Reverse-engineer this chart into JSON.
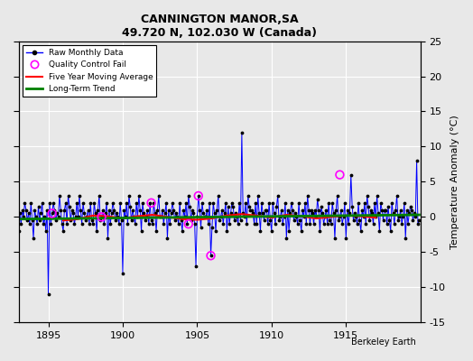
{
  "title": "CANNINGTON MANOR,SA",
  "subtitle": "49.720 N, 102.030 W (Canada)",
  "ylabel": "Temperature Anomaly (°C)",
  "xlabel_credit": "Berkeley Earth",
  "xlim": [
    1893,
    1920
  ],
  "ylim": [
    -15,
    25
  ],
  "yticks": [
    -15,
    -10,
    -5,
    0,
    5,
    10,
    15,
    20,
    25
  ],
  "xticks": [
    1895,
    1900,
    1905,
    1910,
    1915
  ],
  "bg_color": "#e8e8e8",
  "plot_bg_color": "#e8e8e8",
  "grid_color": "#ffffff",
  "raw_color": "blue",
  "dot_color": "black",
  "ma_color": "red",
  "trend_color": "green",
  "qc_color": "magenta",
  "raw_data": {
    "years": [
      1893.0,
      1893.083,
      1893.167,
      1893.25,
      1893.333,
      1893.417,
      1893.5,
      1893.583,
      1893.667,
      1893.75,
      1893.833,
      1893.917,
      1894.0,
      1894.083,
      1894.167,
      1894.25,
      1894.333,
      1894.417,
      1894.5,
      1894.583,
      1894.667,
      1894.75,
      1894.833,
      1894.917,
      1895.0,
      1895.083,
      1895.167,
      1895.25,
      1895.333,
      1895.417,
      1895.5,
      1895.583,
      1895.667,
      1895.75,
      1895.833,
      1895.917,
      1896.0,
      1896.083,
      1896.167,
      1896.25,
      1896.333,
      1896.417,
      1896.5,
      1896.583,
      1896.667,
      1896.75,
      1896.833,
      1896.917,
      1897.0,
      1897.083,
      1897.167,
      1897.25,
      1897.333,
      1897.417,
      1897.5,
      1897.583,
      1897.667,
      1897.75,
      1897.833,
      1897.917,
      1898.0,
      1898.083,
      1898.167,
      1898.25,
      1898.333,
      1898.417,
      1898.5,
      1898.583,
      1898.667,
      1898.75,
      1898.833,
      1898.917,
      1899.0,
      1899.083,
      1899.167,
      1899.25,
      1899.333,
      1899.417,
      1899.5,
      1899.583,
      1899.667,
      1899.75,
      1899.833,
      1899.917,
      1900.0,
      1900.083,
      1900.167,
      1900.25,
      1900.333,
      1900.417,
      1900.5,
      1900.583,
      1900.667,
      1900.75,
      1900.833,
      1900.917,
      1901.0,
      1901.083,
      1901.167,
      1901.25,
      1901.333,
      1901.417,
      1901.5,
      1901.583,
      1901.667,
      1901.75,
      1901.833,
      1901.917,
      1902.0,
      1902.083,
      1902.167,
      1902.25,
      1902.333,
      1902.417,
      1902.5,
      1902.583,
      1902.667,
      1902.75,
      1902.833,
      1902.917,
      1903.0,
      1903.083,
      1903.167,
      1903.25,
      1903.333,
      1903.417,
      1903.5,
      1903.583,
      1903.667,
      1903.75,
      1903.833,
      1903.917,
      1904.0,
      1904.083,
      1904.167,
      1904.25,
      1904.333,
      1904.417,
      1904.5,
      1904.583,
      1904.667,
      1904.75,
      1904.833,
      1904.917,
      1905.0,
      1905.083,
      1905.167,
      1905.25,
      1905.333,
      1905.417,
      1905.5,
      1905.583,
      1905.667,
      1905.75,
      1905.833,
      1905.917,
      1906.0,
      1906.083,
      1906.167,
      1906.25,
      1906.333,
      1906.417,
      1906.5,
      1906.583,
      1906.667,
      1906.75,
      1906.833,
      1906.917,
      1907.0,
      1907.083,
      1907.167,
      1907.25,
      1907.333,
      1907.417,
      1907.5,
      1907.583,
      1907.667,
      1907.75,
      1907.833,
      1907.917,
      1908.0,
      1908.083,
      1908.167,
      1908.25,
      1908.333,
      1908.417,
      1908.5,
      1908.583,
      1908.667,
      1908.75,
      1908.833,
      1908.917,
      1909.0,
      1909.083,
      1909.167,
      1909.25,
      1909.333,
      1909.417,
      1909.5,
      1909.583,
      1909.667,
      1909.75,
      1909.833,
      1909.917,
      1910.0,
      1910.083,
      1910.167,
      1910.25,
      1910.333,
      1910.417,
      1910.5,
      1910.583,
      1910.667,
      1910.75,
      1910.833,
      1910.917,
      1911.0,
      1911.083,
      1911.167,
      1911.25,
      1911.333,
      1911.417,
      1911.5,
      1911.583,
      1911.667,
      1911.75,
      1911.833,
      1911.917,
      1912.0,
      1912.083,
      1912.167,
      1912.25,
      1912.333,
      1912.417,
      1912.5,
      1912.583,
      1912.667,
      1912.75,
      1912.833,
      1912.917,
      1913.0,
      1913.083,
      1913.167,
      1913.25,
      1913.333,
      1913.417,
      1913.5,
      1913.583,
      1913.667,
      1913.75,
      1913.833,
      1913.917,
      1914.0,
      1914.083,
      1914.167,
      1914.25,
      1914.333,
      1914.417,
      1914.5,
      1914.583,
      1914.667,
      1914.75,
      1914.833,
      1914.917,
      1915.0,
      1915.083,
      1915.167,
      1915.25,
      1915.333,
      1915.417,
      1915.5,
      1915.583,
      1915.667,
      1915.75,
      1915.833,
      1915.917,
      1916.0,
      1916.083,
      1916.167,
      1916.25,
      1916.333,
      1916.417,
      1916.5,
      1916.583,
      1916.667,
      1916.75,
      1916.833,
      1916.917,
      1917.0,
      1917.083,
      1917.167,
      1917.25,
      1917.333,
      1917.417,
      1917.5,
      1917.583,
      1917.667,
      1917.75,
      1917.833,
      1917.917,
      1918.0,
      1918.083,
      1918.167,
      1918.25,
      1918.333,
      1918.417,
      1918.5,
      1918.583,
      1918.667,
      1918.75,
      1918.833,
      1918.917,
      1919.0,
      1919.083,
      1919.167,
      1919.25,
      1919.333,
      1919.417,
      1919.5,
      1919.583,
      1919.667,
      1919.75,
      1919.833,
      1919.917
    ],
    "values": [
      -2,
      0.5,
      -1,
      1,
      0,
      2,
      1,
      -0.5,
      0.5,
      -1,
      2,
      -0.5,
      -3,
      1,
      0,
      -1,
      1.5,
      -0.5,
      0.5,
      2,
      -1,
      0,
      -2,
      1,
      -11,
      2,
      -1,
      0.5,
      2,
      1,
      -0.5,
      0.5,
      0,
      3,
      1,
      -1,
      -2,
      1,
      2,
      -1,
      3,
      1.5,
      -0.5,
      1,
      0.5,
      -1,
      0,
      2,
      0,
      3,
      1,
      -1,
      2,
      0.5,
      -0.5,
      0,
      1,
      -1,
      2,
      -0.5,
      -1,
      2,
      0.5,
      -2,
      1,
      3,
      -0.5,
      0,
      1,
      -1,
      0.5,
      2,
      -3,
      1,
      -1,
      0.5,
      2,
      1,
      -0.5,
      0.5,
      0,
      -1,
      2,
      -0.5,
      -8,
      1,
      0,
      2,
      -1,
      3,
      1.5,
      -0.5,
      1,
      0,
      -1,
      2,
      0,
      3,
      1,
      -2,
      2,
      0.5,
      -0.5,
      0,
      1,
      -1,
      2,
      -0.5,
      -1,
      2,
      0.5,
      -2,
      1,
      3,
      0,
      0,
      1,
      -1,
      0.5,
      2,
      -3,
      1,
      -1,
      0.5,
      2,
      1,
      -0.5,
      0.5,
      0,
      -1,
      2,
      -0.5,
      -2,
      1,
      0,
      2,
      -1,
      3,
      1.5,
      -0.5,
      1,
      0.5,
      -1,
      -7,
      0,
      3,
      1,
      -1.5,
      2,
      0.5,
      0,
      0,
      1,
      -1,
      2,
      -5.5,
      -1.5,
      2,
      0.5,
      -2,
      1,
      3,
      -0.5,
      0,
      1,
      -1,
      0.5,
      2,
      -2,
      1.5,
      -1,
      0.5,
      2,
      1.5,
      -0.5,
      0.5,
      0,
      -1,
      2,
      -0.5,
      12,
      0.5,
      0,
      2,
      -1,
      3,
      1.5,
      1,
      1,
      0.5,
      -1,
      2,
      -1,
      3,
      0.5,
      -2,
      2,
      0.5,
      -0.5,
      1,
      1,
      -1,
      2,
      -0.5,
      -2,
      2,
      0.5,
      -1,
      1.5,
      3,
      -0.5,
      0,
      1,
      -1,
      0,
      2,
      -3,
      1,
      -2,
      0.5,
      2,
      1,
      -0.5,
      0.5,
      0,
      -1,
      2,
      -0.5,
      -2,
      1,
      0,
      2,
      -1,
      3,
      1,
      -1,
      1,
      0.5,
      -1,
      1,
      0,
      2.5,
      1,
      -2,
      1.5,
      0.5,
      -1,
      0,
      1,
      -1,
      2,
      -0.5,
      -1,
      2,
      0.5,
      -3,
      1,
      3,
      -0.5,
      0,
      1,
      -1,
      0,
      2,
      -3,
      1,
      -1,
      0.5,
      6,
      1.5,
      -0.5,
      0.5,
      0,
      -1,
      2,
      -0.5,
      -2,
      1,
      0,
      2,
      -1,
      3,
      1.5,
      -0.5,
      1,
      0.5,
      -1,
      2,
      0,
      3,
      0.5,
      -2,
      2,
      1,
      -0.5,
      1,
      1,
      -1,
      1.5,
      -0.5,
      -2,
      2,
      0.5,
      -1,
      1,
      3,
      -0.5,
      0,
      1,
      -1,
      0,
      2,
      -3,
      1,
      -1,
      0.5,
      1.5,
      1,
      -0.5,
      0.5,
      0,
      8,
      -1,
      -0.5
    ]
  },
  "qc_fail_years": [
    1895.25,
    1898.583,
    1901.917,
    1904.417,
    1905.083,
    1905.917,
    1914.583
  ],
  "qc_fail_values": [
    0.5,
    0,
    2,
    -1,
    3,
    -5.5,
    6
  ],
  "ma_years": [
    1896,
    1897,
    1898,
    1899,
    1900,
    1901,
    1902,
    1903,
    1904,
    1905,
    1906,
    1907,
    1908,
    1909,
    1910,
    1911,
    1912,
    1913,
    1914,
    1915,
    1916,
    1917
  ],
  "ma_values": [
    -0.5,
    -0.3,
    0.2,
    0.1,
    -0.2,
    0.1,
    0.3,
    0.0,
    -0.3,
    -0.4,
    -0.2,
    0.2,
    0.4,
    0.2,
    -0.1,
    0.3,
    0.1,
    -0.2,
    0.0,
    0.2,
    0.1,
    -0.1
  ],
  "trend_years": [
    1893,
    1919.917
  ],
  "trend_values": [
    -0.3,
    0.3
  ]
}
